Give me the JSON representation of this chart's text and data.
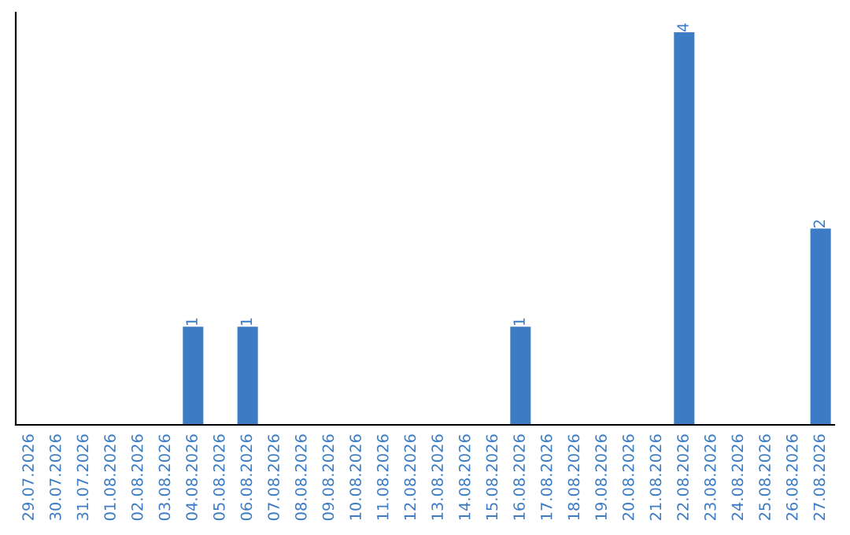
{
  "chart_data": {
    "type": "bar",
    "categories": [
      "29.07.2026",
      "30.07.2026",
      "31.07.2026",
      "01.08.2026",
      "02.08.2026",
      "03.08.2026",
      "04.08.2026",
      "05.08.2026",
      "06.08.2026",
      "07.08.2026",
      "08.08.2026",
      "09.08.2026",
      "10.08.2026",
      "11.08.2026",
      "12.08.2026",
      "13.08.2026",
      "14.08.2026",
      "15.08.2026",
      "16.08.2026",
      "17.08.2026",
      "18.08.2026",
      "19.08.2026",
      "20.08.2026",
      "21.08.2026",
      "22.08.2026",
      "23.08.2026",
      "24.08.2026",
      "25.08.2026",
      "26.08.2026",
      "27.08.2026"
    ],
    "values": [
      0,
      0,
      0,
      0,
      0,
      0,
      1,
      0,
      1,
      0,
      0,
      0,
      0,
      0,
      0,
      0,
      0,
      0,
      1,
      0,
      0,
      0,
      0,
      0,
      4,
      0,
      0,
      0,
      0,
      2
    ],
    "value_labels": [
      null,
      null,
      null,
      null,
      null,
      null,
      "1",
      null,
      "1",
      null,
      null,
      null,
      null,
      null,
      null,
      null,
      null,
      null,
      "1",
      null,
      null,
      null,
      null,
      null,
      "4",
      null,
      null,
      null,
      null,
      "2"
    ],
    "color": "#3b7cc4",
    "grid": false,
    "legend": false
  }
}
